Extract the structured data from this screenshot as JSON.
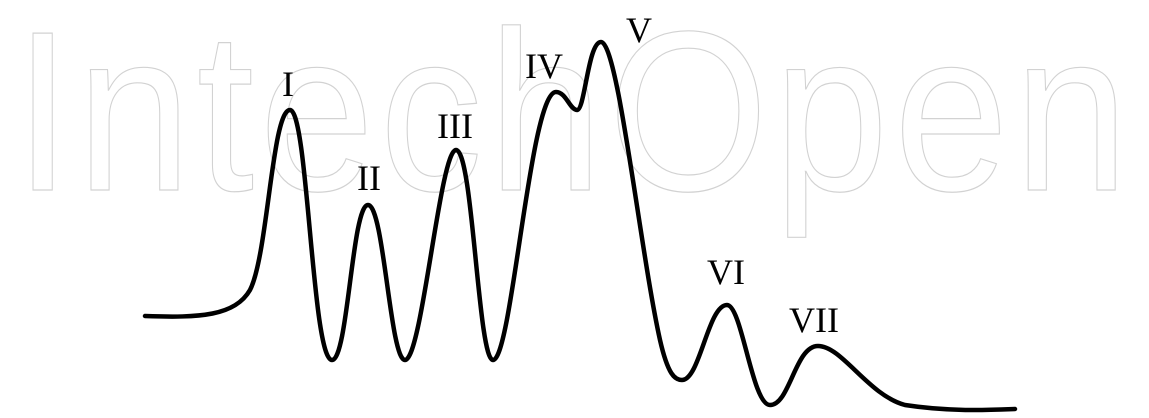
{
  "watermark": {
    "text": "IntechOpen",
    "color": "#d2d2d2"
  },
  "diagram": {
    "stroke_color": "#000000",
    "background": "#ffffff",
    "peaks": [
      {
        "id": "peak-1",
        "label": "I"
      },
      {
        "id": "peak-2",
        "label": "II"
      },
      {
        "id": "peak-3",
        "label": "III"
      },
      {
        "id": "peak-4",
        "label": "IV"
      },
      {
        "id": "peak-5",
        "label": "V"
      },
      {
        "id": "peak-6",
        "label": "VI"
      },
      {
        "id": "peak-7",
        "label": "VII"
      }
    ]
  }
}
